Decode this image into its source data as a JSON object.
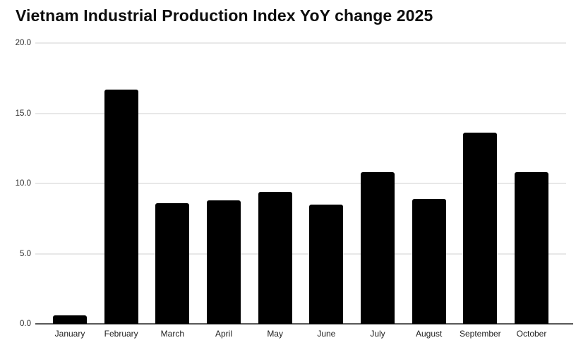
{
  "chart_data": {
    "type": "bar",
    "title": "Vietnam Industrial Production Index YoY change 2025",
    "categories": [
      "January",
      "February",
      "March",
      "April",
      "May",
      "June",
      "July",
      "August",
      "September",
      "October"
    ],
    "values": [
      0.6,
      16.7,
      8.6,
      8.8,
      9.4,
      8.5,
      10.8,
      8.9,
      13.6,
      10.8
    ],
    "xlabel": "",
    "ylabel": "",
    "ylim": [
      0,
      20
    ],
    "yticks": [
      0,
      5,
      10,
      15,
      20
    ],
    "ytick_labels": [
      "0.0",
      "5.0",
      "10.0",
      "15.0",
      "20.0"
    ],
    "grid": true,
    "legend": false,
    "bar_color": "#000000"
  },
  "colors": {
    "background": "#ffffff",
    "bar": "#000000",
    "gridline": "#e8e8e8",
    "axis_line": "#595959",
    "title_text": "#0d0d0d",
    "tick_text": "#2e2e2e"
  }
}
